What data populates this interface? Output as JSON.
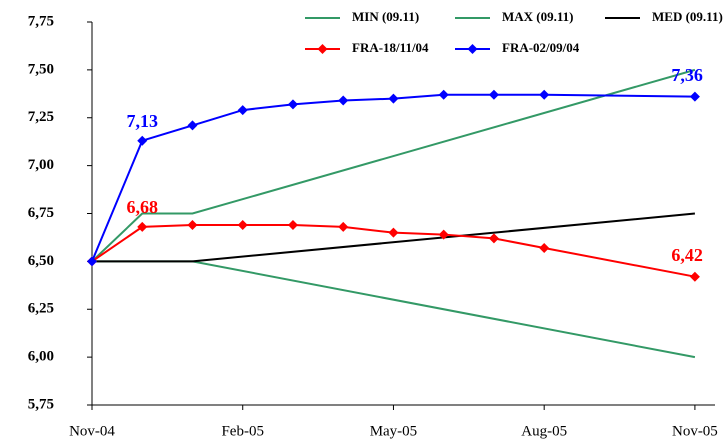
{
  "chart_data": {
    "type": "line",
    "xlim": [
      0,
      12.4
    ],
    "xticks": [
      {
        "value": 0,
        "label": "Nov-04"
      },
      {
        "value": 3,
        "label": "Feb-05"
      },
      {
        "value": 6,
        "label": "May-05"
      },
      {
        "value": 9,
        "label": "Aug-05"
      },
      {
        "value": 12,
        "label": "Nov-05"
      }
    ],
    "ylim": [
      5.75,
      7.75
    ],
    "yticks": [
      {
        "value": 5.75,
        "label": "5,75"
      },
      {
        "value": 6.0,
        "label": "6,00"
      },
      {
        "value": 6.25,
        "label": "6,25"
      },
      {
        "value": 6.5,
        "label": "6,50"
      },
      {
        "value": 6.75,
        "label": "6,75"
      },
      {
        "value": 7.0,
        "label": "7,00"
      },
      {
        "value": 7.25,
        "label": "7,25"
      },
      {
        "value": 7.5,
        "label": "7,50"
      },
      {
        "value": 7.75,
        "label": "7,75"
      }
    ],
    "grid": false,
    "series": [
      {
        "name": "MIN (09.11)",
        "color": "#339966",
        "markers": false,
        "x": [
          0,
          2,
          12
        ],
        "values": [
          6.5,
          6.5,
          6.0
        ]
      },
      {
        "name": "MAX (09.11)",
        "color": "#339966",
        "markers": false,
        "x": [
          0,
          1,
          2,
          12
        ],
        "values": [
          6.5,
          6.75,
          6.75,
          7.5
        ]
      },
      {
        "name": "MED (09.11)",
        "color": "#000000",
        "markers": false,
        "x": [
          0,
          2,
          12
        ],
        "values": [
          6.5,
          6.5,
          6.75
        ]
      },
      {
        "name": "FRA-18/11/04",
        "color": "#ff0000",
        "markers": true,
        "x": [
          0,
          1,
          2,
          3,
          4,
          5,
          6,
          7,
          8,
          9,
          12
        ],
        "values": [
          6.5,
          6.68,
          6.69,
          6.69,
          6.69,
          6.68,
          6.65,
          6.64,
          6.62,
          6.57,
          6.42
        ],
        "value_labels": [
          null,
          "6,68",
          null,
          null,
          null,
          null,
          null,
          null,
          null,
          null,
          "6,42"
        ]
      },
      {
        "name": "FRA-02/09/04",
        "color": "#0000ff",
        "markers": true,
        "x": [
          0,
          1,
          2,
          3,
          4,
          5,
          6,
          7,
          8,
          9,
          12
        ],
        "values": [
          6.5,
          7.13,
          7.21,
          7.29,
          7.32,
          7.34,
          7.35,
          7.37,
          7.37,
          7.37,
          7.36
        ],
        "value_labels": [
          null,
          "7,13",
          null,
          null,
          null,
          null,
          null,
          null,
          null,
          null,
          "7,36"
        ]
      }
    ]
  }
}
